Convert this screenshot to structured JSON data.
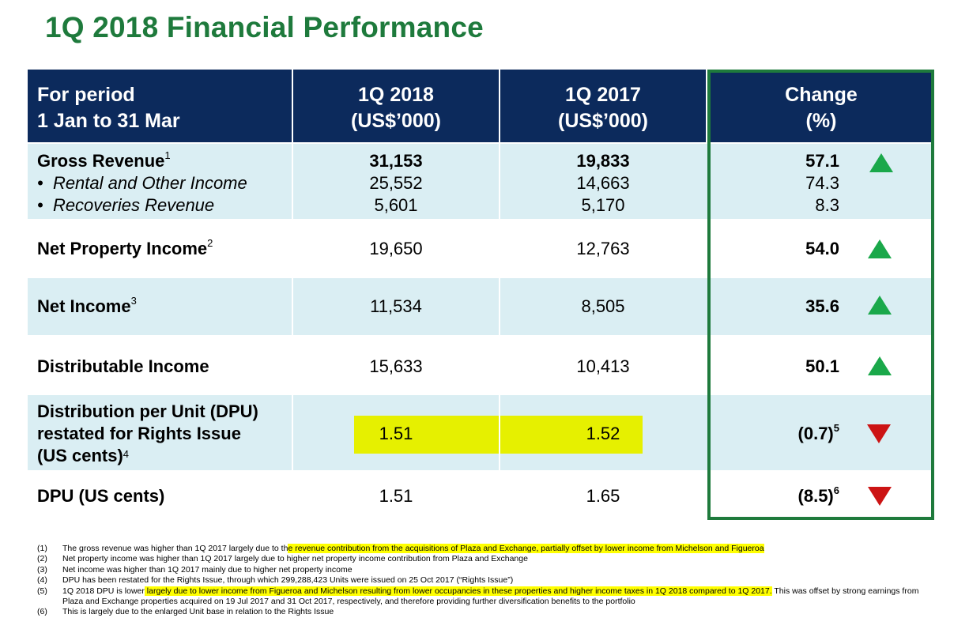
{
  "title": "1Q 2018 Financial Performance",
  "header": {
    "period_line1": "For period",
    "period_line2": "1 Jan to 31 Mar",
    "col1_line1": "1Q 2018",
    "col1_line2": "(US$’000)",
    "col2_line1": "1Q 2017",
    "col2_line2": "(US$’000)",
    "col3_line1": "Change",
    "col3_line2": "(%)"
  },
  "rows": {
    "gross_revenue": {
      "label": "Gross Revenue",
      "note": "1",
      "q2018": "31,153",
      "q2017": "19,833",
      "change": "57.1",
      "direction": "up"
    },
    "rental": {
      "label": "Rental and Other Income",
      "q2018": "25,552",
      "q2017": "14,663",
      "change": "74.3"
    },
    "recoveries": {
      "label": "Recoveries Revenue",
      "q2018": "5,601",
      "q2017": "5,170",
      "change": "8.3"
    },
    "npi": {
      "label": "Net Property Income",
      "note": "2",
      "q2018": "19,650",
      "q2017": "12,763",
      "change": "54.0",
      "direction": "up"
    },
    "net_income": {
      "label": "Net Income",
      "note": "3",
      "q2018": "11,534",
      "q2017": "8,505",
      "change": "35.6",
      "direction": "up"
    },
    "distributable": {
      "label": "Distributable Income",
      "q2018": "15,633",
      "q2017": "10,413",
      "change": "50.1",
      "direction": "up"
    },
    "dpu_restated": {
      "label_line1": "Distribution per Unit (DPU)",
      "label_line2": "restated for Rights Issue",
      "label_line3": "(US cents)",
      "note": "4",
      "q2018": "1.51",
      "q2017": "1.52",
      "change": "(0.7)",
      "change_note": "5",
      "direction": "down"
    },
    "dpu": {
      "label": "DPU (US cents)",
      "q2018": "1.51",
      "q2017": "1.65",
      "change": "(8.5)",
      "change_note": "6",
      "direction": "down"
    }
  },
  "footnotes": [
    {
      "num": "(1)",
      "pre": "The gross revenue was higher than 1Q 2017 largely due to th",
      "hl": "e revenue contribution from the acquisitions of Plaza and Exchange, partially offset by lower income from Michelson and Figueroa",
      "post": ""
    },
    {
      "num": "(2)",
      "pre": "Net property income was higher than 1Q 2017 largely due to higher net property income contribution from Plaza and Exchange",
      "hl": "",
      "post": ""
    },
    {
      "num": "(3)",
      "pre": "Net income was higher than 1Q 2017 mainly due to higher net property income",
      "hl": "",
      "post": ""
    },
    {
      "num": "(4)",
      "pre": "DPU has been restated for the Rights Issue, through which 299,288,423 Units were issued on 25 Oct 2017 (“Rights Issue”)",
      "hl": "",
      "post": ""
    },
    {
      "num": "(5)",
      "pre": "1Q 2018 DPU is lower",
      "hl": " largely due to lower income from Figueroa and Michelson resulting from lower occupancies in these properties and higher income taxes in 1Q 2018 compared to 1Q 2017.",
      "post": " This was offset by strong earnings from Plaza and Exchange properties acquired on 19 Jul 2017 and 31 Oct 2017, respectively, and therefore providing further diversification benefits to the portfolio"
    },
    {
      "num": "(6)",
      "pre": "This is largely due to the enlarged Unit base in relation to the Rights Issue",
      "hl": "",
      "post": ""
    }
  ],
  "colors": {
    "title_green": "#1e7a3c",
    "header_navy": "#0c2a5c",
    "row_shade": "#daeef3",
    "highlight": "#e6f000",
    "up": "#1aa84a",
    "down": "#cc1414"
  }
}
